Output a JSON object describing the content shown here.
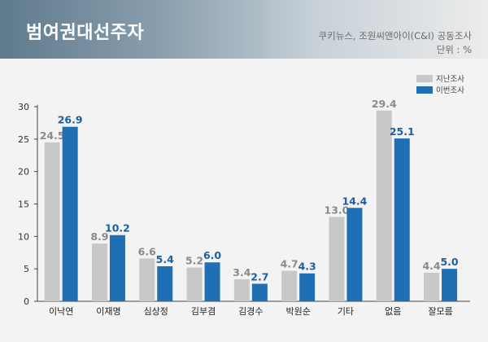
{
  "header": {
    "title": "범여권대선주자",
    "source": "쿠키뉴스, 조원씨앤아이(C&I) 공동조사",
    "unit": "단위 : %"
  },
  "colors": {
    "previous": "#c8c8c8",
    "current": "#1f6fb5",
    "previous_label": "#8a8a8a",
    "current_label": "#1f5fa0"
  },
  "chart_data": {
    "type": "bar",
    "categories": [
      "이낙연",
      "이재명",
      "심상정",
      "김부겸",
      "김경수",
      "박원순",
      "기타",
      "없음",
      "잘모름"
    ],
    "series": [
      {
        "name": "지난조사",
        "values": [
          24.5,
          8.9,
          6.6,
          5.2,
          3.4,
          4.7,
          13.0,
          29.4,
          4.4
        ]
      },
      {
        "name": "이번조사",
        "values": [
          26.9,
          10.2,
          5.4,
          6.0,
          2.7,
          4.3,
          14.4,
          25.1,
          5.0
        ]
      }
    ],
    "value_labels": [
      [
        "24.5",
        "8.9",
        "6.6",
        "5.2",
        "3.4",
        "4.7",
        "13.0",
        "29.4",
        "4.4"
      ],
      [
        "26.9",
        "10.2",
        "5.4",
        "6.0",
        "2.7",
        "4.3",
        "14.4",
        "25.1",
        "5.0"
      ]
    ],
    "ylim": [
      0,
      30
    ],
    "yticks": [
      "0",
      "5",
      "10",
      "15",
      "20",
      "25",
      "30"
    ],
    "grid": false,
    "legend_position": "top-right"
  }
}
